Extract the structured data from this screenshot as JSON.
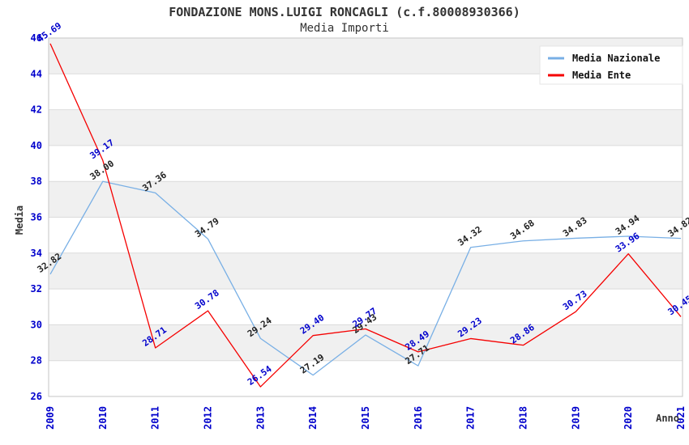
{
  "title": "FONDAZIONE MONS.LUIGI RONCAGLI (c.f.80008930366)",
  "subtitle": "Media Importi",
  "colors": {
    "background": "#ffffff",
    "band": "#f0f0f0",
    "grid": "#dbdbdb",
    "frame": "#c6c6c6",
    "axis_text": "#0000cc",
    "legend_border": "#e4e4e4",
    "national_line": "#78afe5",
    "entity_line": "#f50000"
  },
  "chart_data": {
    "type": "line",
    "x": [
      "2009",
      "2010",
      "2011",
      "2012",
      "2013",
      "2014",
      "2015",
      "2016",
      "2017",
      "2018",
      "2019",
      "2020",
      "2021"
    ],
    "series": [
      {
        "name": "Media Nazionale",
        "color": "#78afe5",
        "label_color": "#1f1f1f",
        "values": [
          32.82,
          38.0,
          37.36,
          34.79,
          29.24,
          27.19,
          29.43,
          27.71,
          34.32,
          34.68,
          34.83,
          34.94,
          34.82
        ]
      },
      {
        "name": "Media Ente",
        "color": "#f50000",
        "label_color": "#0000cc",
        "values": [
          45.69,
          39.17,
          28.71,
          30.78,
          26.54,
          29.4,
          29.77,
          28.49,
          29.23,
          28.86,
          30.73,
          33.96,
          30.45
        ]
      }
    ],
    "xlabel": "Anno",
    "ylabel": "Media",
    "ylim": [
      26,
      46
    ],
    "ytick_step": 2,
    "grid": "horizontal-bands-alternating",
    "legend_position": "top-right",
    "point_label_format": "2-decimals",
    "point_label_rotation_deg": -35
  }
}
